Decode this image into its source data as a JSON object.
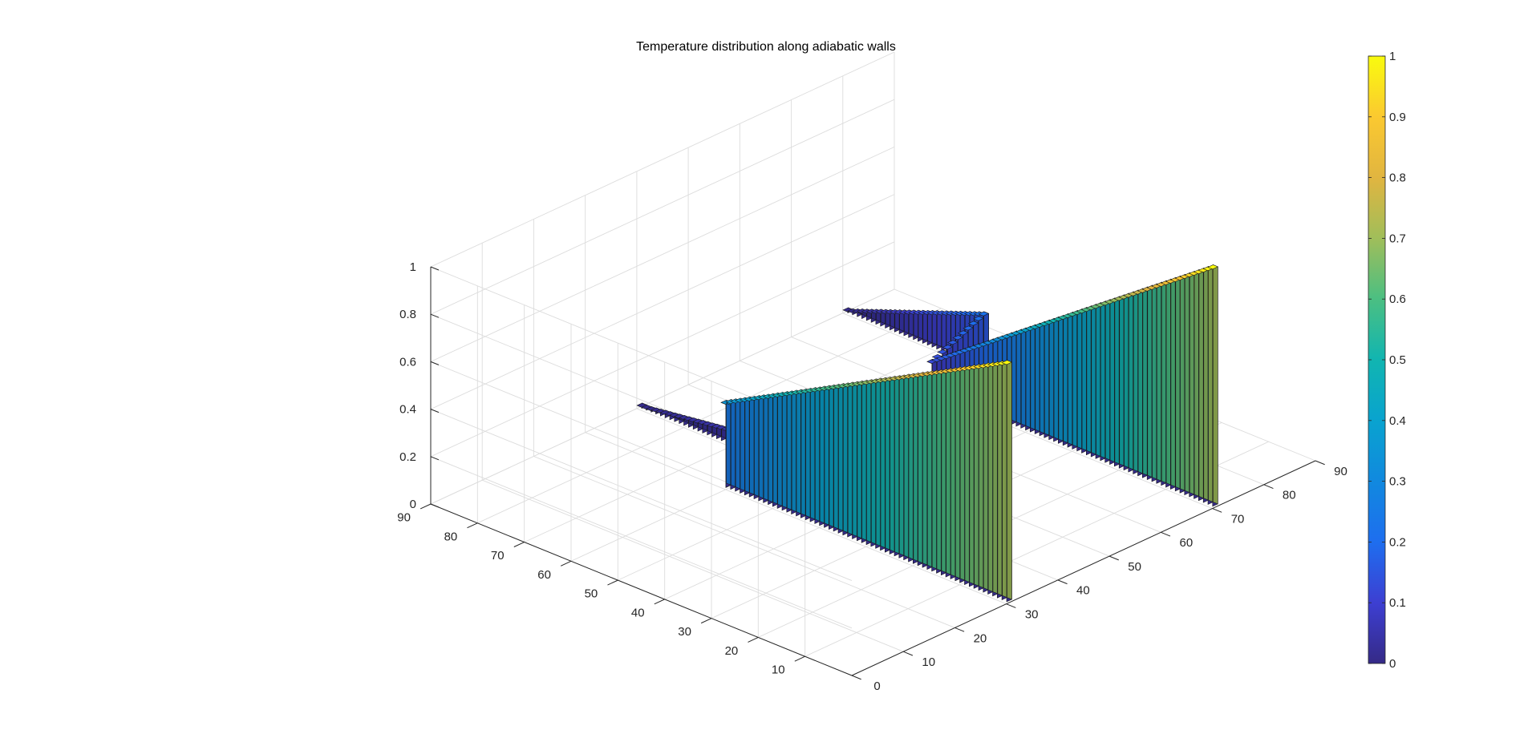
{
  "chart_data": {
    "type": "bar3",
    "title": "Temperature distribution along adiabatic walls",
    "xlabel": "",
    "ylabel": "",
    "zlabel": "",
    "x_ticks": [
      "0",
      "10",
      "20",
      "30",
      "40",
      "50",
      "60",
      "70",
      "80",
      "90"
    ],
    "y_ticks": [
      "10",
      "20",
      "30",
      "40",
      "50",
      "60",
      "70",
      "80",
      "90"
    ],
    "z_ticks": [
      "0",
      "0.2",
      "0.4",
      "0.6",
      "0.8",
      "1"
    ],
    "xlim": [
      0,
      90
    ],
    "ylim": [
      0,
      90
    ],
    "zlim": [
      0,
      1
    ],
    "grid": true,
    "colorbar": {
      "colormap": "parula",
      "limits": [
        0,
        1
      ],
      "ticks": [
        "0",
        "0.1",
        "0.2",
        "0.3",
        "0.4",
        "0.5",
        "0.6",
        "0.7",
        "0.8",
        "0.9",
        "1"
      ]
    },
    "walls": [
      {
        "segments": [
          {
            "orientation": "along-y",
            "fixed": 31,
            "from": 1,
            "to": 61,
            "z_start": 1.0,
            "z_end": 0.35
          },
          {
            "orientation": "along-x",
            "fixed": 61,
            "from": 31,
            "to": 41,
            "z_start": 0.35,
            "z_end": 0.22
          },
          {
            "orientation": "along-y",
            "fixed": 41,
            "from": 61,
            "to": 90,
            "z_start": 0.08,
            "z_end": 0.0
          }
        ]
      },
      {
        "segments": [
          {
            "orientation": "along-y",
            "fixed": 71,
            "from": 1,
            "to": 61,
            "z_start": 1.0,
            "z_end": 0.12
          },
          {
            "orientation": "along-x",
            "fixed": 61,
            "from": 71,
            "to": 81,
            "z_start": 0.12,
            "z_end": 0.22
          },
          {
            "orientation": "along-y",
            "fixed": 81,
            "from": 61,
            "to": 90,
            "z_start": 0.22,
            "z_end": 0.0
          }
        ]
      }
    ]
  }
}
